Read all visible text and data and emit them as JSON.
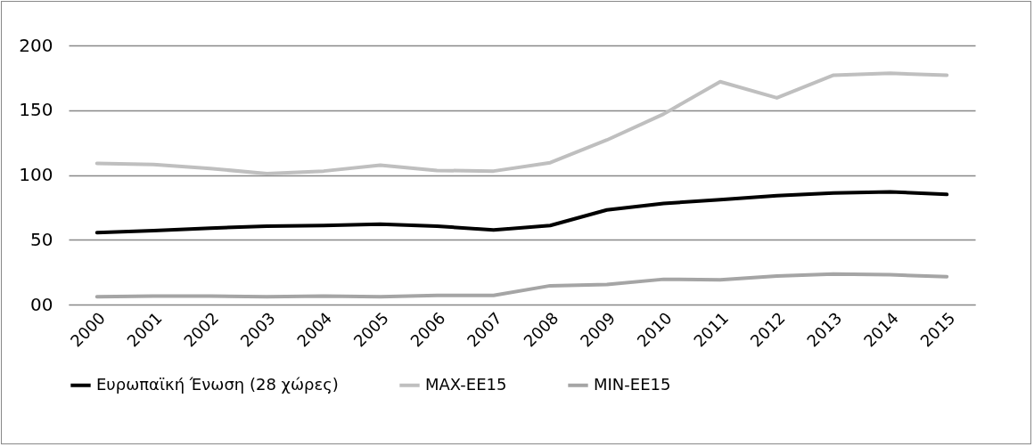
{
  "chart_data": {
    "type": "line",
    "categories": [
      "2000",
      "2001",
      "2002",
      "2003",
      "2004",
      "2005",
      "2006",
      "2007",
      "2008",
      "2009",
      "2010",
      "2011",
      "2012",
      "2013",
      "2014",
      "2015"
    ],
    "series": [
      {
        "name": "Ευρωπαϊκή Ένωση (28 χώρες)",
        "color": "#000000",
        "values": [
          55.5,
          57,
          59,
          60.5,
          61,
          62,
          60.5,
          57.5,
          61,
          73,
          78,
          81,
          84,
          86,
          87,
          85
        ]
      },
      {
        "name": "MAX-EE15",
        "color": "#bfbfbf",
        "values": [
          109,
          108,
          105,
          101,
          103,
          107.5,
          103.5,
          103,
          109.5,
          127,
          147,
          172,
          159.5,
          177,
          178.5,
          177
        ]
      },
      {
        "name": "MIN-EE15",
        "color": "#a5a5a5",
        "values": [
          6,
          6.5,
          6.5,
          6,
          6.5,
          6,
          7,
          7,
          14.5,
          15.5,
          19.5,
          19,
          22,
          23.5,
          23,
          21.5
        ]
      }
    ],
    "ylim": [
      0,
      200
    ],
    "yticks": [
      {
        "value": 0,
        "label": "00"
      },
      50,
      100,
      150,
      200
    ],
    "grid": "y",
    "legend": "bottom",
    "marker": "none",
    "line_style": "solid"
  }
}
